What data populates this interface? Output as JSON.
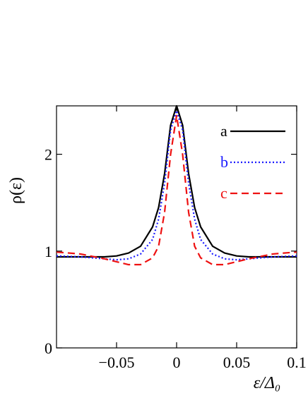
{
  "chart_data": {
    "type": "line",
    "xlabel": "ε/Δ₀",
    "ylabel": "ρ(ε)",
    "xlim": [
      -0.1,
      0.1
    ],
    "ylim": [
      0,
      2.5
    ],
    "x_ticks": [
      -0.05,
      0,
      0.05,
      0.1
    ],
    "x_tick_labels": [
      "−0.05",
      "0",
      "0.05",
      "0.1"
    ],
    "y_ticks": [
      0,
      1,
      2
    ],
    "y_tick_labels": [
      "0",
      "1",
      "2"
    ],
    "grid": false,
    "legend_placement": "top-right",
    "x": [
      -0.1,
      -0.08,
      -0.06,
      -0.05,
      -0.04,
      -0.03,
      -0.02,
      -0.015,
      -0.01,
      -0.005,
      0,
      0.005,
      0.01,
      0.015,
      0.02,
      0.03,
      0.04,
      0.05,
      0.06,
      0.08,
      0.1
    ],
    "series": [
      {
        "name": "a",
        "color": "#000000",
        "style": "solid",
        "values": [
          0.94,
          0.94,
          0.94,
          0.95,
          0.98,
          1.05,
          1.25,
          1.45,
          1.8,
          2.3,
          2.5,
          2.3,
          1.8,
          1.45,
          1.25,
          1.05,
          0.98,
          0.95,
          0.94,
          0.94,
          0.94
        ]
      },
      {
        "name": "b",
        "color": "#1a1aff",
        "style": "dotted",
        "values": [
          0.95,
          0.94,
          0.92,
          0.91,
          0.92,
          0.97,
          1.12,
          1.33,
          1.7,
          2.25,
          2.45,
          2.25,
          1.7,
          1.33,
          1.12,
          0.97,
          0.92,
          0.91,
          0.92,
          0.94,
          0.95
        ]
      },
      {
        "name": "c",
        "color": "#ee1111",
        "style": "dashed",
        "values": [
          0.99,
          0.97,
          0.92,
          0.89,
          0.86,
          0.86,
          0.93,
          1.05,
          1.4,
          2.0,
          2.4,
          2.0,
          1.4,
          1.05,
          0.93,
          0.86,
          0.86,
          0.89,
          0.92,
          0.97,
          0.99
        ]
      }
    ]
  }
}
